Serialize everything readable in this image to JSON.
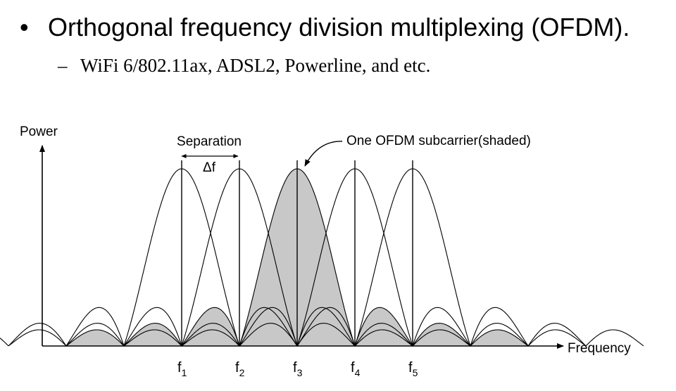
{
  "slide": {
    "bullet": "Orthogonal frequency division multiplexing (OFDM).",
    "sub_bullet": "WiFi 6/802.11ax, ADSL2, Powerline, and etc."
  },
  "diagram": {
    "y_axis_label": "Power",
    "x_axis_label": "Frequency",
    "separation_label": "Separation",
    "delta_label": "Δf",
    "callout_label": "One OFDM subcarrier(shaded)",
    "subcarriers": [
      {
        "base": "f",
        "sub": "1"
      },
      {
        "base": "f",
        "sub": "2"
      },
      {
        "base": "f",
        "sub": "3"
      },
      {
        "base": "f",
        "sub": "4"
      },
      {
        "base": "f",
        "sub": "5"
      }
    ],
    "shaded_subcarrier_index": 2,
    "shade_color": "#c8c8c8",
    "line_color": "#000000"
  }
}
